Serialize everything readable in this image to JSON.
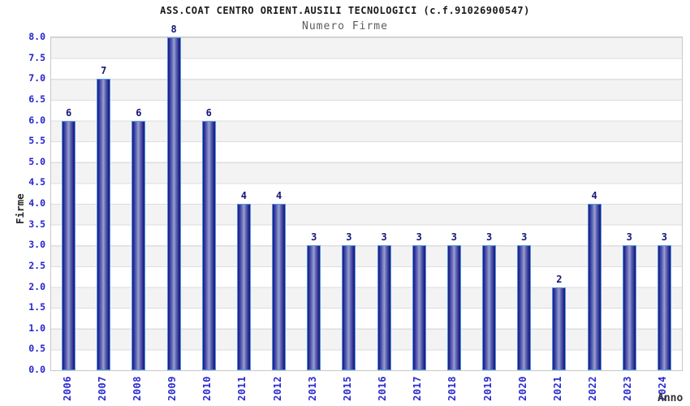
{
  "chart_data": {
    "type": "bar",
    "title": "ASS.COAT CENTRO ORIENT.AUSILI TECNOLOGICI (c.f.91026900547)",
    "subtitle": "Numero Firme",
    "xlabel": "Anno",
    "ylabel": "Firme",
    "categories": [
      "2006",
      "2007",
      "2008",
      "2009",
      "2010",
      "2011",
      "2012",
      "2013",
      "2015",
      "2016",
      "2017",
      "2018",
      "2019",
      "2020",
      "2021",
      "2022",
      "2023",
      "2024"
    ],
    "values": [
      6,
      7,
      6,
      8,
      6,
      4,
      4,
      3,
      3,
      3,
      3,
      3,
      3,
      3,
      2,
      4,
      3,
      3
    ],
    "ylim": [
      0.0,
      8.0
    ],
    "yticks": [
      "0.0",
      "0.5",
      "1.0",
      "1.5",
      "2.0",
      "2.5",
      "3.0",
      "3.5",
      "4.0",
      "4.5",
      "5.0",
      "5.5",
      "6.0",
      "6.5",
      "7.0",
      "7.5",
      "8.0"
    ],
    "grid": "horizontal-bands-alternating",
    "legend": "none",
    "colors": {
      "bar_dark": "#1b1b75",
      "bar_highlight": "#99a2d0",
      "bar_border": "#4e96e8",
      "axis_tick_label": "#2424cc",
      "value_label": "#16167a",
      "title": "#1a1a1a",
      "subtitle": "#5c5c5c",
      "band_gray": "#f3f3f3",
      "band_white": "#ffffff",
      "plot_border": "#c8c8c8"
    }
  }
}
